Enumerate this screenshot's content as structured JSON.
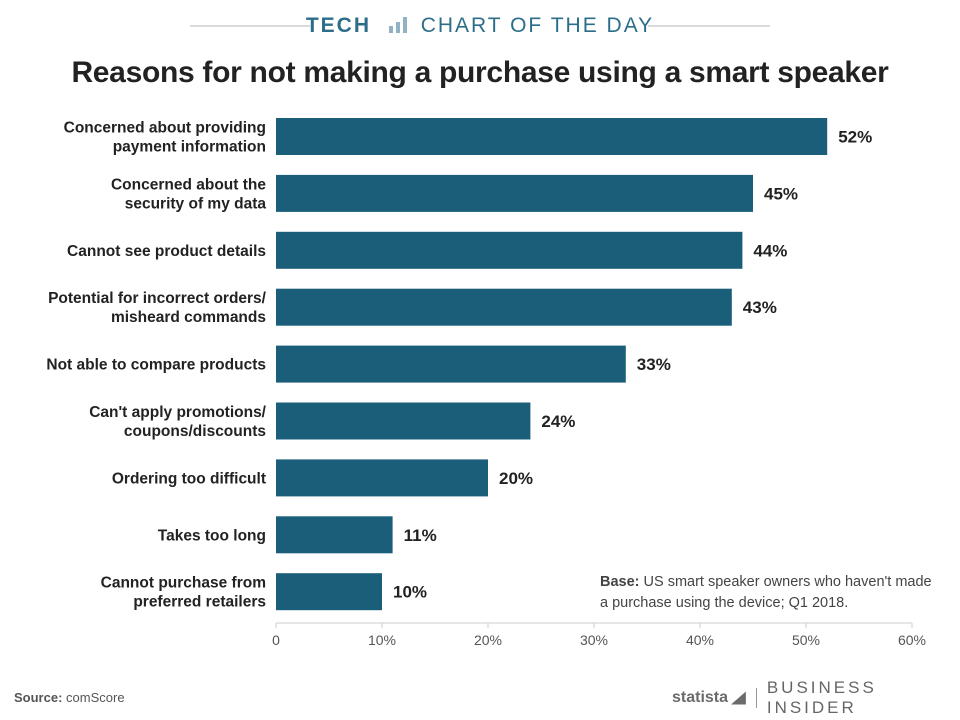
{
  "header": {
    "section": "TECH",
    "series_title": "CHART OF THE DAY"
  },
  "note": {
    "label": "Base:",
    "text": "US smart speaker owners who haven't made a purchase using the device; Q1 2018."
  },
  "source": {
    "label": "Source:",
    "text": "comScore"
  },
  "footer": {
    "statista": "statista",
    "publisher": "BUSINESS INSIDER"
  },
  "colors": {
    "bar": "#1b5e7a",
    "accent": "#2c6e8a",
    "axis": "#cccccc"
  },
  "chart_data": {
    "type": "bar",
    "orientation": "horizontal",
    "title": "Reasons for not making a purchase using a smart speaker",
    "categories": [
      [
        "Concerned about providing",
        "payment information"
      ],
      [
        "Concerned about the",
        "security of my data"
      ],
      [
        "Cannot see product details"
      ],
      [
        "Potential for incorrect orders/",
        "misheard commands"
      ],
      [
        "Not able to compare products"
      ],
      [
        "Can't apply promotions/",
        "coupons/discounts"
      ],
      [
        "Ordering too difficult"
      ],
      [
        "Takes too long"
      ],
      [
        "Cannot purchase from",
        "preferred retailers"
      ]
    ],
    "values": [
      52,
      45,
      44,
      43,
      33,
      24,
      20,
      11,
      10
    ],
    "value_labels": [
      "52%",
      "45%",
      "44%",
      "43%",
      "33%",
      "24%",
      "20%",
      "11%",
      "10%"
    ],
    "xlim": [
      0,
      60
    ],
    "xticks": [
      0,
      10,
      20,
      30,
      40,
      50,
      60
    ],
    "xtick_labels": [
      "0",
      "10%",
      "20%",
      "30%",
      "40%",
      "50%",
      "60%"
    ],
    "xlabel": "",
    "ylabel": "",
    "grid": false,
    "legend": "none"
  }
}
